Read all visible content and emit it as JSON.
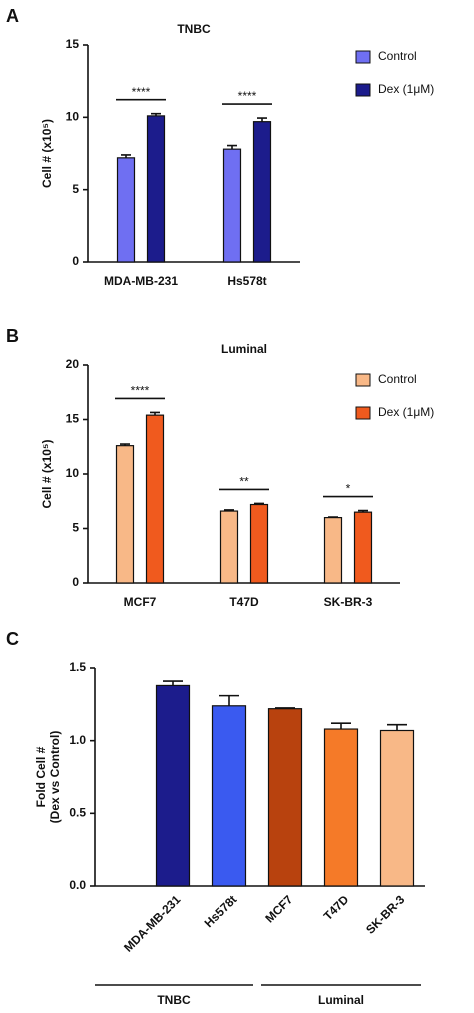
{
  "chart_data": [
    {
      "panel": "A",
      "type": "bar",
      "title": "TNBC",
      "y_label": "Cell # (x10⁵)",
      "categories": [
        "MDA-MB-231",
        "Hs578t"
      ],
      "series": [
        {
          "name": "Control",
          "color": "#6f6ff2",
          "values": [
            7.2,
            7.8
          ],
          "errors": [
            0.2,
            0.25
          ]
        },
        {
          "name": "Dex (1μM)",
          "color": "#1c1c8c",
          "values": [
            10.1,
            9.7
          ],
          "errors": [
            0.15,
            0.25
          ]
        }
      ],
      "significance": [
        "****",
        "****"
      ],
      "ylim": [
        0,
        15
      ],
      "yticks": [
        0,
        5,
        10,
        15
      ]
    },
    {
      "panel": "B",
      "type": "bar",
      "title": "Luminal",
      "y_label": "Cell # (x10⁵)",
      "categories": [
        "MCF7",
        "T47D",
        "SK-BR-3"
      ],
      "series": [
        {
          "name": "Control",
          "color": "#f8b887",
          "values": [
            12.6,
            6.6,
            6.0
          ],
          "errors": [
            0.15,
            0.1,
            0.05
          ]
        },
        {
          "name": "Dex (1μM)",
          "color": "#f05a1e",
          "values": [
            15.4,
            7.2,
            6.5
          ],
          "errors": [
            0.25,
            0.1,
            0.15
          ]
        }
      ],
      "significance": [
        "****",
        "**",
        "*"
      ],
      "ylim": [
        0,
        20
      ],
      "yticks": [
        0,
        5,
        10,
        15,
        20
      ]
    },
    {
      "panel": "C",
      "type": "bar",
      "y_label": [
        "Fold Cell #",
        "(Dex vs Control)"
      ],
      "categories": [
        "MDA-MB-231",
        "Hs578t",
        "MCF7",
        "T47D",
        "SK-BR-3"
      ],
      "values": [
        1.38,
        1.24,
        1.22,
        1.08,
        1.07
      ],
      "errors": [
        0.03,
        0.07,
        0.005,
        0.04,
        0.04
      ],
      "colors": [
        "#1c1c8c",
        "#3a5af0",
        "#b8420e",
        "#f57a28",
        "#f8b887"
      ],
      "groups": [
        {
          "name": "TNBC",
          "categories": [
            "MDA-MB-231",
            "Hs578t"
          ]
        },
        {
          "name": "Luminal",
          "categories": [
            "MCF7",
            "T47D",
            "SK-BR-3"
          ]
        }
      ],
      "ylim": [
        0,
        1.5
      ],
      "yticks": [
        {
          "value": 0,
          "label": "0.0"
        },
        0.5,
        {
          "value": 1,
          "label": "1.0"
        },
        1.5
      ]
    }
  ]
}
